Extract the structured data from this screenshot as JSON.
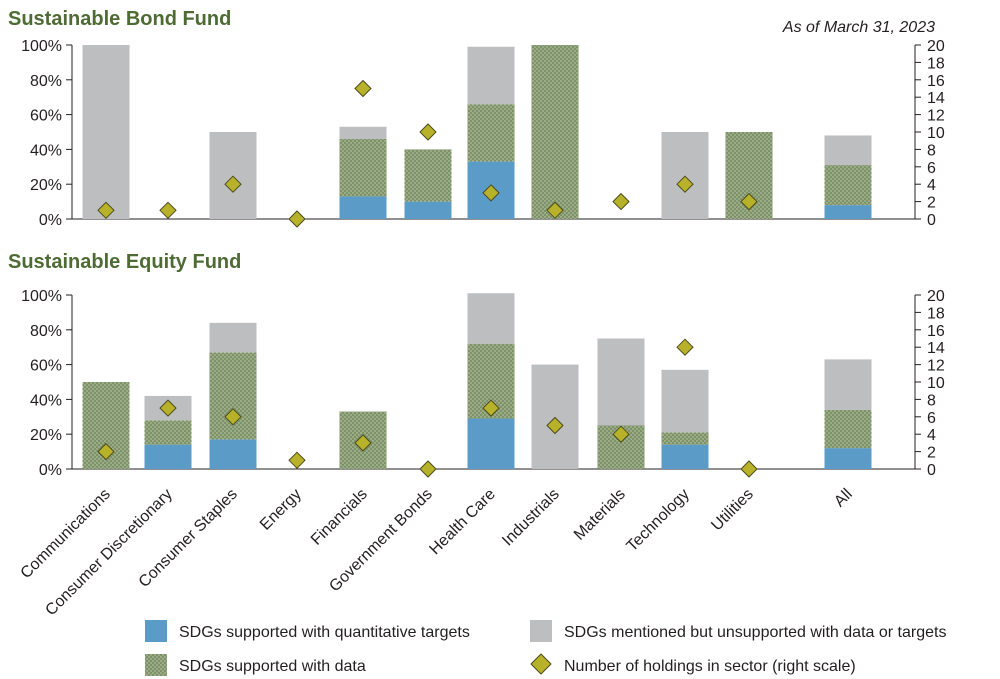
{
  "as_of": "As of March 31, 2023",
  "colors": {
    "quant": "#5b9bc8",
    "data_bg": "#7d9268",
    "data_dot": "#c6d3b4",
    "unsupported": "#bcbec0",
    "diamond": "#b8b22a",
    "diamond_stroke": "#4b4a1c",
    "title": "#4e6b34"
  },
  "chart_data": [
    {
      "type": "bar",
      "stacked": true,
      "title": "Sustainable Bond Fund",
      "categories": [
        "Communications",
        "Consumer Discretionary",
        "Consumer Staples",
        "Energy",
        "Financials",
        "Government Bonds",
        "Health Care",
        "Industrials",
        "Materials",
        "Technology",
        "Utilities",
        "All"
      ],
      "ylim": [
        0,
        100
      ],
      "ylim_right": [
        0,
        20
      ],
      "yticks": [
        "0%",
        "20%",
        "40%",
        "60%",
        "80%",
        "100%"
      ],
      "yticks_right": [
        "0",
        "2",
        "4",
        "6",
        "8",
        "10",
        "12",
        "14",
        "16",
        "18",
        "20"
      ],
      "series": [
        {
          "name": "SDGs supported with quantitative targets",
          "values": [
            0,
            0,
            0,
            0,
            13,
            10,
            33,
            0,
            0,
            0,
            0,
            8
          ]
        },
        {
          "name": "SDGs supported with data",
          "values": [
            0,
            0,
            0,
            0,
            33,
            30,
            33,
            100,
            0,
            0,
            50,
            23
          ]
        },
        {
          "name": "SDGs mentioned but unsupported with data or targets",
          "values": [
            100,
            0,
            50,
            0,
            7,
            0,
            33,
            0,
            0,
            50,
            0,
            17
          ]
        }
      ],
      "holdings": [
        1,
        1,
        4,
        0,
        15,
        10,
        3,
        1,
        2,
        4,
        2,
        null
      ]
    },
    {
      "type": "bar",
      "stacked": true,
      "title": "Sustainable Equity Fund",
      "categories": [
        "Communications",
        "Consumer Discretionary",
        "Consumer Staples",
        "Energy",
        "Financials",
        "Government Bonds",
        "Health Care",
        "Industrials",
        "Materials",
        "Technology",
        "Utilities",
        "All"
      ],
      "ylim": [
        0,
        100
      ],
      "ylim_right": [
        0,
        20
      ],
      "yticks": [
        "0%",
        "20%",
        "40%",
        "60%",
        "80%",
        "100%"
      ],
      "yticks_right": [
        "0",
        "2",
        "4",
        "6",
        "8",
        "10",
        "12",
        "14",
        "16",
        "18",
        "20"
      ],
      "series": [
        {
          "name": "SDGs supported with quantitative targets",
          "values": [
            0,
            14,
            17,
            0,
            0,
            0,
            29,
            0,
            0,
            14,
            0,
            12
          ]
        },
        {
          "name": "SDGs supported with data",
          "values": [
            50,
            14,
            50,
            0,
            33,
            0,
            43,
            0,
            25,
            7,
            0,
            22
          ]
        },
        {
          "name": "SDGs mentioned but unsupported with data or targets",
          "values": [
            0,
            14,
            17,
            0,
            0,
            0,
            29,
            60,
            50,
            36,
            0,
            29
          ]
        }
      ],
      "holdings": [
        2,
        7,
        6,
        1,
        3,
        0,
        7,
        5,
        4,
        14,
        0,
        null
      ]
    }
  ],
  "legend": [
    {
      "key": "quant",
      "label": "SDGs supported with quantitative targets"
    },
    {
      "key": "unsupported",
      "label": "SDGs mentioned but unsupported with data or targets"
    },
    {
      "key": "data",
      "label": "SDGs supported with data"
    },
    {
      "key": "diamond",
      "label": "Number of holdings in sector (right scale)"
    }
  ]
}
